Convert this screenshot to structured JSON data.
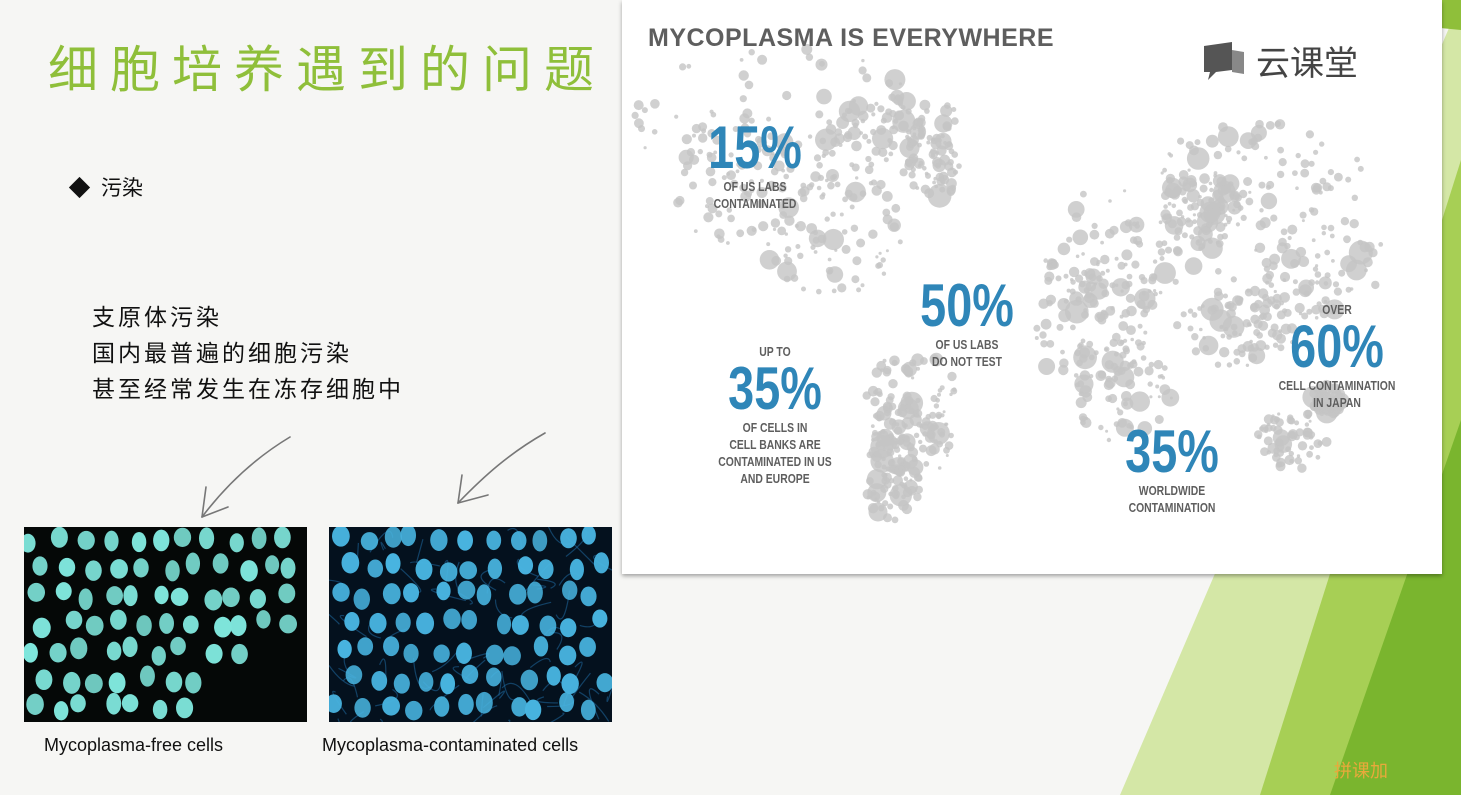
{
  "slide": {
    "title": "细胞培养遇到的问题",
    "bullet": "污染",
    "notes": [
      "支原体污染",
      "国内最普遍的细胞污染",
      "甚至经常发生在冻存细胞中"
    ]
  },
  "images": {
    "free_caption": "Mycoplasma-free cells",
    "contaminated_caption": "Mycoplasma-contaminated cells"
  },
  "map_panel": {
    "title": "MYCOPLASMA IS EVERYWHERE",
    "logo_text": "云课堂",
    "stats": [
      {
        "prefix": "",
        "value": "15%",
        "label": "OF US LABS\nCONTAMINATED"
      },
      {
        "prefix": "",
        "value": "50%",
        "label": "OF US LABS\nDO NOT TEST"
      },
      {
        "prefix": "UP TO",
        "value": "35%",
        "label": "OF CELLS IN\nCELL BANKS ARE\nCONTAMINATED IN US\nAND EUROPE"
      },
      {
        "prefix": "",
        "value": "35%",
        "label": "WORLDWIDE\nCONTAMINATION"
      },
      {
        "prefix": "OVER",
        "value": "60%",
        "label": "CELL CONTAMINATION\nIN JAPAN"
      }
    ]
  },
  "watermark": "拼课加",
  "colors": {
    "title_green": "#8fbf3a",
    "stat_blue": "#2f86b8",
    "map_dot": "#c4c4c4",
    "nucleus_free": "#7fe6dc",
    "nucleus_contaminated": "#48b4e0"
  }
}
